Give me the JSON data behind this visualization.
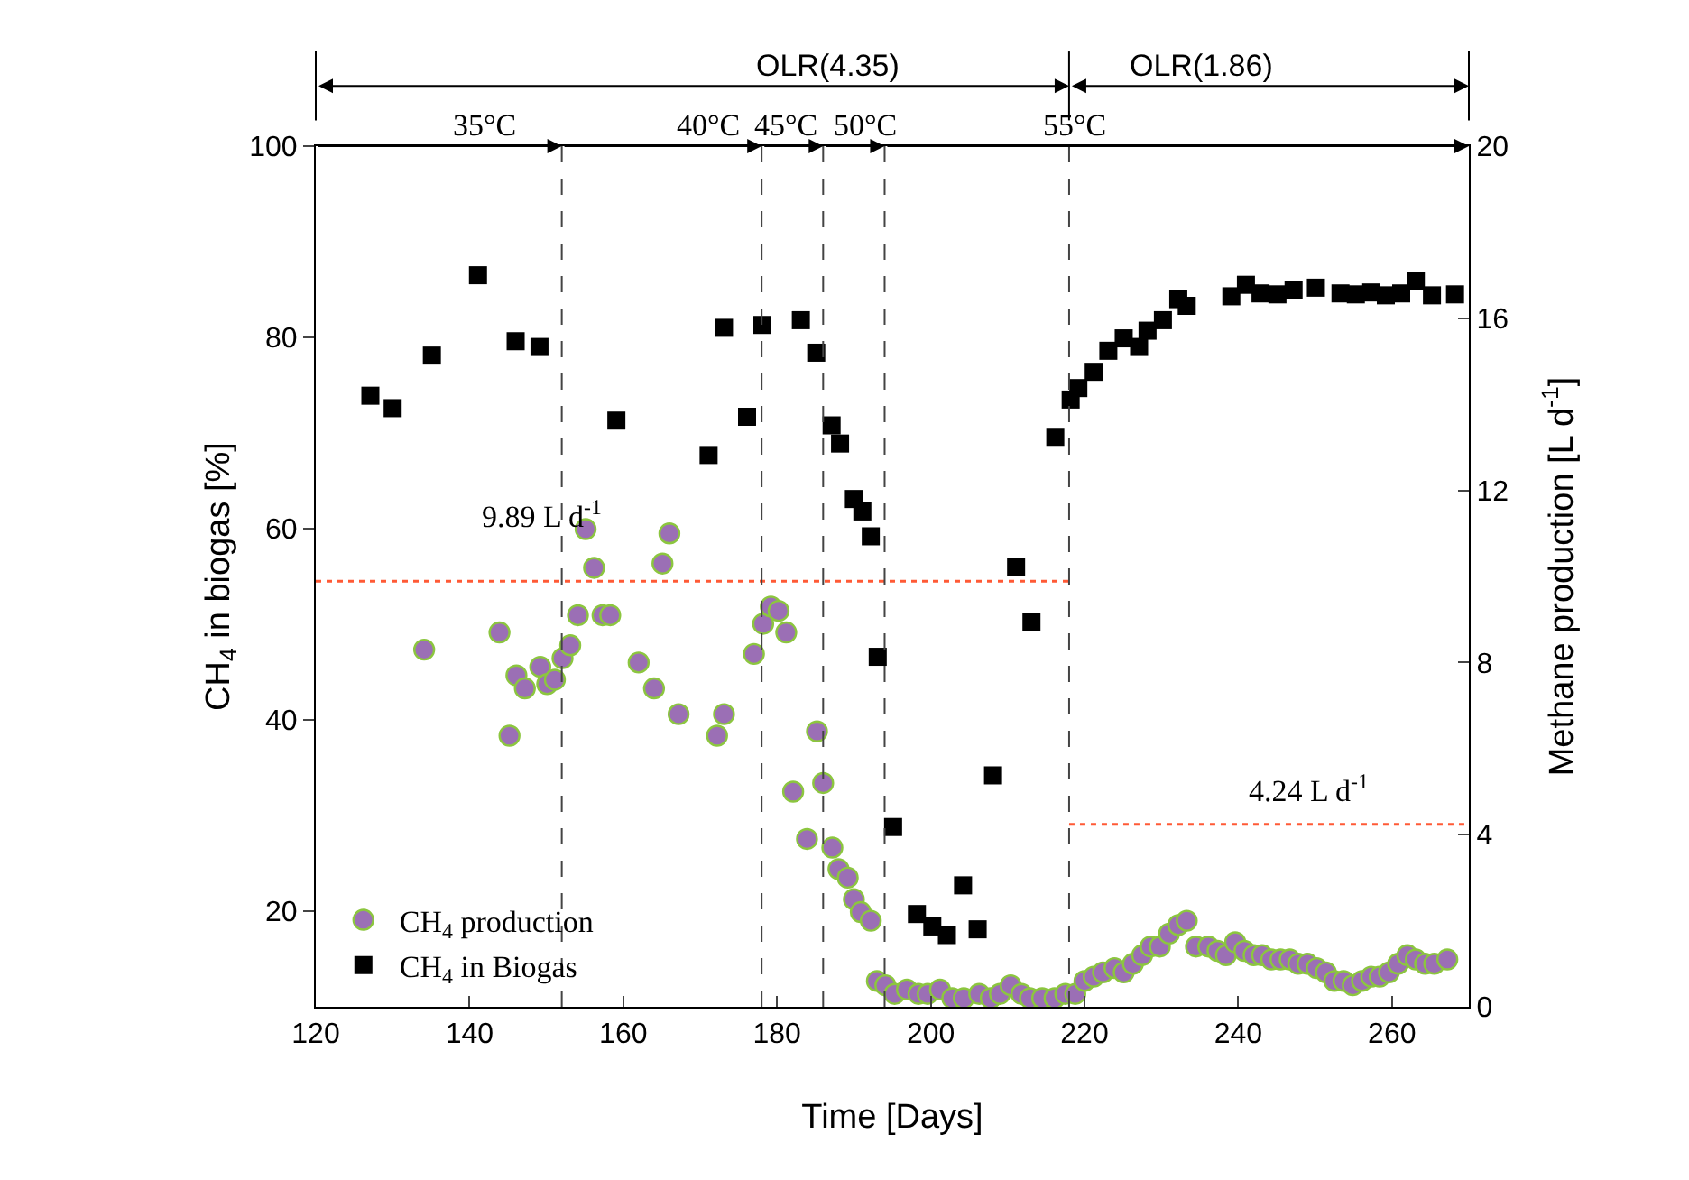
{
  "chart_data": {
    "type": "scatter",
    "xlabel": "Time [Days]",
    "ylabel": "CH$_{4}$ in biogas [%]",
    "y2label": "Methane production [L d$^{-1}$]",
    "xlim": [
      120,
      270
    ],
    "xticks": [
      120,
      140,
      160,
      180,
      200,
      220,
      240,
      260
    ],
    "ylim": [
      10,
      100
    ],
    "yticks": [
      20,
      40,
      60,
      80,
      100
    ],
    "y2lim": [
      0,
      20
    ],
    "y2ticks": [
      0,
      4,
      8,
      12,
      16,
      20
    ],
    "grid": false,
    "legend": "bottom left",
    "series": [
      {
        "name": "CH$_{4}$ production",
        "axis": "y2",
        "marker": "circle",
        "color": "#9b6fb5",
        "x": [
          134.1,
          143.9,
          145.2,
          146.1,
          147.2,
          149.2,
          150.1,
          151.1,
          152.1,
          153.1,
          154.1,
          155.1,
          156.2,
          157.3,
          158.3,
          162.0,
          164.0,
          165.1,
          166.0,
          167.2,
          172.2,
          173.1,
          177.0,
          178.2,
          179.2,
          180.2,
          181.2,
          182.1,
          183.9,
          185.2,
          186.0,
          187.2,
          188.0,
          189.2,
          190.0,
          190.9,
          192.2,
          193.0,
          194.1,
          195.3,
          196.9,
          198.4,
          199.6,
          201.2,
          202.8,
          204.3,
          206.3,
          207.8,
          209.0,
          210.4,
          211.8,
          212.9,
          214.5,
          216.1,
          217.5,
          218.8,
          220.0,
          221.2,
          222.4,
          223.9,
          225.1,
          226.3,
          227.5,
          228.6,
          229.8,
          231.0,
          232.2,
          233.3,
          234.5,
          236.1,
          237.3,
          238.4,
          239.6,
          240.8,
          242.0,
          243.1,
          244.3,
          245.5,
          246.7,
          247.8,
          249.0,
          250.2,
          251.4,
          252.5,
          253.7,
          254.9,
          256.1,
          257.3,
          258.4,
          259.6,
          260.8,
          262.0,
          263.1,
          264.3,
          265.5,
          267.2
        ],
        "values": [
          8.3,
          8.7,
          6.3,
          7.7,
          7.4,
          7.9,
          7.5,
          7.6,
          8.1,
          8.4,
          9.1,
          11.1,
          10.2,
          9.1,
          9.1,
          8.0,
          7.4,
          10.3,
          11.0,
          6.8,
          6.3,
          6.8,
          8.2,
          8.9,
          9.3,
          9.2,
          8.7,
          5.0,
          3.9,
          6.4,
          5.2,
          3.7,
          3.2,
          3.0,
          2.5,
          2.2,
          2.0,
          0.6,
          0.5,
          0.3,
          0.4,
          0.3,
          0.3,
          0.4,
          0.2,
          0.2,
          0.3,
          0.2,
          0.3,
          0.5,
          0.3,
          0.2,
          0.2,
          0.2,
          0.3,
          0.3,
          0.6,
          0.7,
          0.8,
          0.9,
          0.8,
          1.0,
          1.2,
          1.4,
          1.4,
          1.7,
          1.9,
          2.0,
          1.4,
          1.4,
          1.3,
          1.2,
          1.5,
          1.3,
          1.2,
          1.2,
          1.1,
          1.1,
          1.1,
          1.0,
          1.0,
          0.9,
          0.8,
          0.6,
          0.6,
          0.5,
          0.6,
          0.7,
          0.7,
          0.8,
          1.0,
          1.2,
          1.1,
          1.0,
          1.0,
          1.1
        ]
      },
      {
        "name": "CH$_{4}$ in Biogas",
        "marker": "square",
        "color": "#000000",
        "x": [
          127.1,
          130.0,
          135.1,
          141.1,
          146.0,
          149.1,
          159.1,
          171.1,
          173.1,
          176.1,
          178.1,
          183.1,
          185.1,
          187.1,
          188.2,
          190.0,
          191.1,
          192.2,
          193.1,
          195.1,
          198.2,
          200.2,
          202.1,
          204.2,
          206.1,
          208.1,
          211.1,
          213.1,
          216.2,
          218.2,
          219.2,
          221.2,
          223.1,
          225.1,
          227.1,
          228.2,
          230.2,
          232.2,
          233.3,
          239.1,
          241.0,
          242.9,
          245.1,
          247.2,
          250.1,
          253.3,
          255.3,
          257.3,
          259.2,
          261.2,
          263.1,
          265.2,
          268.2
        ],
        "values": [
          73.9,
          72.6,
          78.1,
          86.5,
          79.6,
          79.0,
          71.3,
          67.7,
          81.0,
          71.7,
          81.3,
          81.8,
          78.4,
          70.8,
          68.9,
          63.1,
          61.8,
          59.2,
          46.6,
          28.8,
          19.7,
          18.4,
          17.5,
          22.7,
          18.1,
          34.2,
          56.0,
          50.2,
          69.6,
          73.5,
          74.7,
          76.4,
          78.6,
          79.9,
          79.0,
          80.7,
          81.8,
          84.0,
          83.3,
          84.3,
          85.5,
          84.6,
          84.5,
          85.0,
          85.2,
          84.6,
          84.5,
          84.7,
          84.4,
          84.6,
          85.9,
          84.4,
          84.5
        ]
      },
      {
        "type": "line",
        "axis": "y2",
        "color": "#ff5a36",
        "line_style": "dotted",
        "x": [
          120,
          218
        ],
        "values": [
          9.89,
          9.89
        ]
      },
      {
        "type": "line",
        "axis": "y2",
        "color": "#ff5a36",
        "line_style": "dotted",
        "x": [
          218,
          270
        ],
        "values": [
          4.24,
          4.24
        ]
      }
    ],
    "ref_lines": [
      {
        "axis": "x",
        "value": 152,
        "color": "#444444",
        "line_style": "dashed"
      },
      {
        "axis": "x",
        "value": 178,
        "color": "#444444",
        "line_style": "dashed"
      },
      {
        "axis": "x",
        "value": 186,
        "color": "#444444",
        "line_style": "dashed"
      },
      {
        "axis": "x",
        "value": 194,
        "color": "#444444",
        "line_style": "dashed"
      },
      {
        "axis": "x",
        "value": 218,
        "color": "#444444",
        "line_style": "dashed"
      }
    ],
    "annotations": [
      "OLR(4.35)",
      "OLR(1.86)",
      "35°C",
      "40°C",
      "45°C",
      "50°C",
      "55°C",
      "9.89 L d$^{-1}$",
      "4.24 L d$^{-1}$"
    ]
  }
}
